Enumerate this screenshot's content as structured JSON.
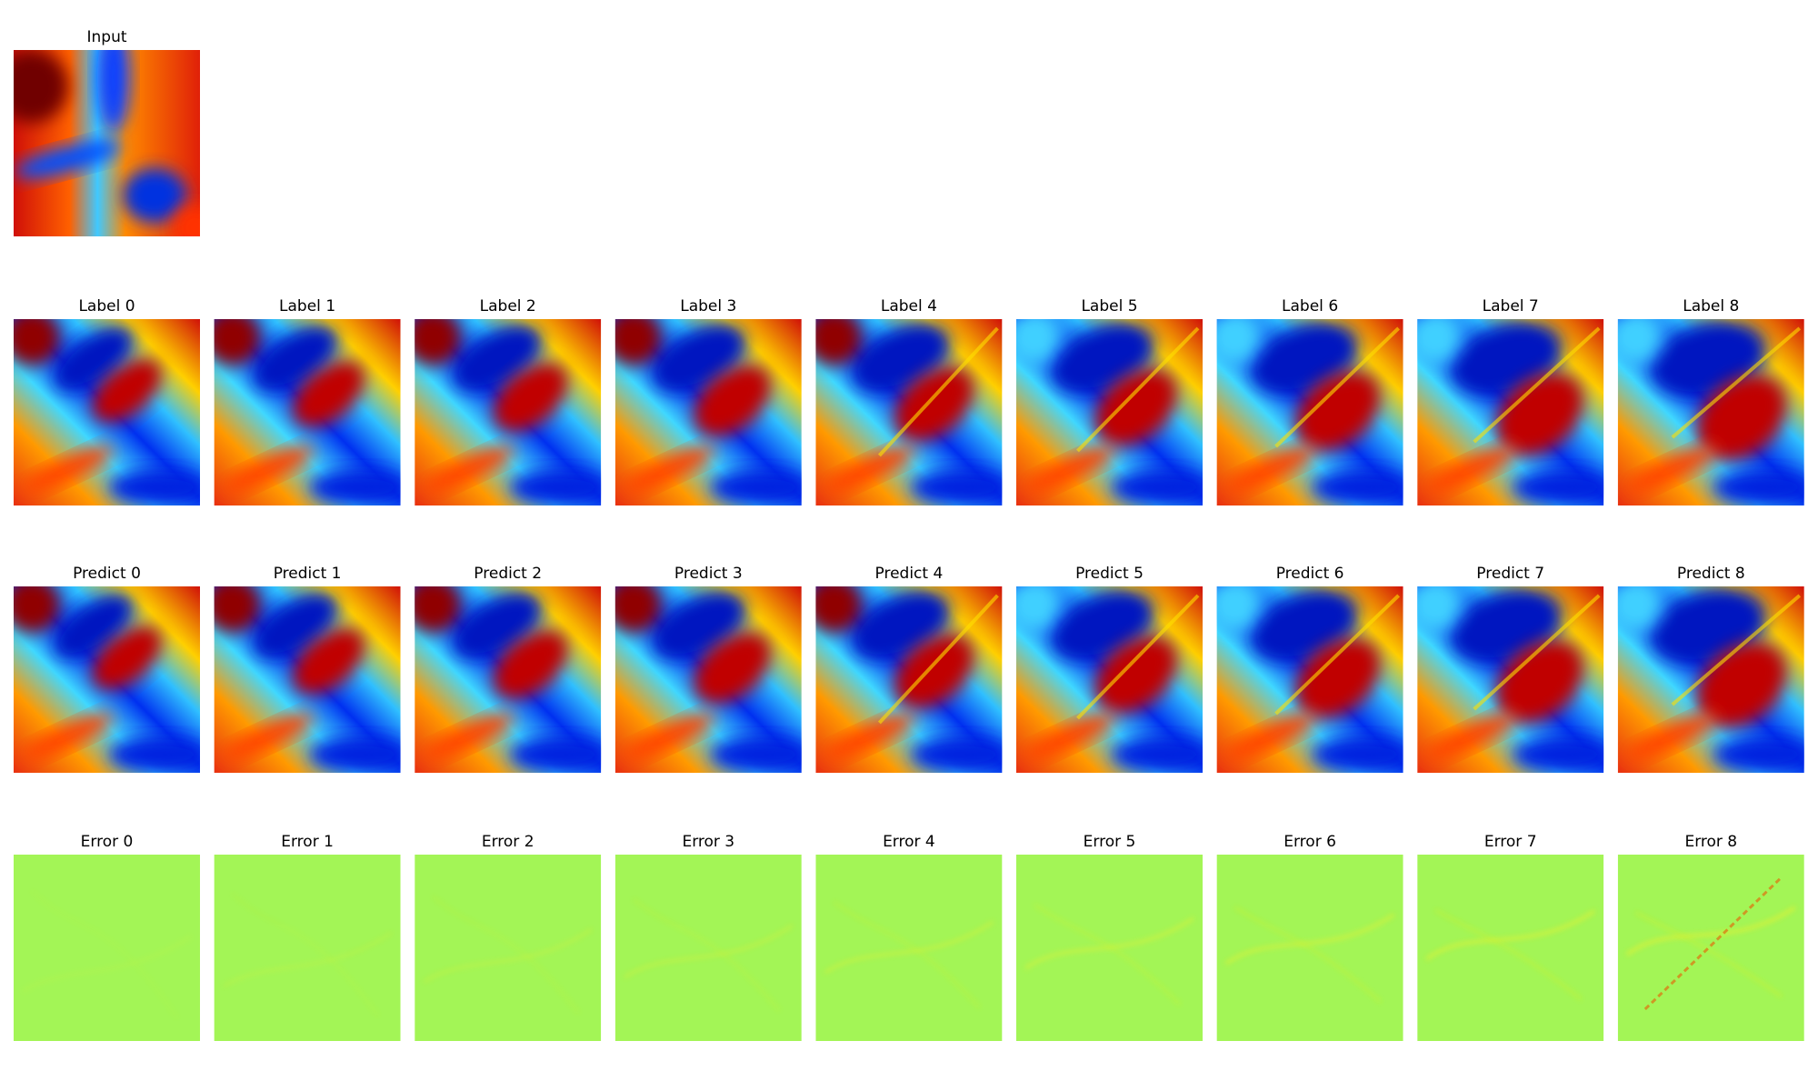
{
  "input_title": "Input",
  "label_titles": [
    "Label 0",
    "Label 1",
    "Label 2",
    "Label 3",
    "Label 4",
    "Label 5",
    "Label 6",
    "Label 7",
    "Label 8"
  ],
  "predict_titles": [
    "Predict 0",
    "Predict 1",
    "Predict 2",
    "Predict 3",
    "Predict 4",
    "Predict 5",
    "Predict 6",
    "Predict 7",
    "Predict 8"
  ],
  "error_titles": [
    "Error 0",
    "Error 1",
    "Error 2",
    "Error 3",
    "Error 4",
    "Error 5",
    "Error 6",
    "Error 7",
    "Error 8"
  ]
}
